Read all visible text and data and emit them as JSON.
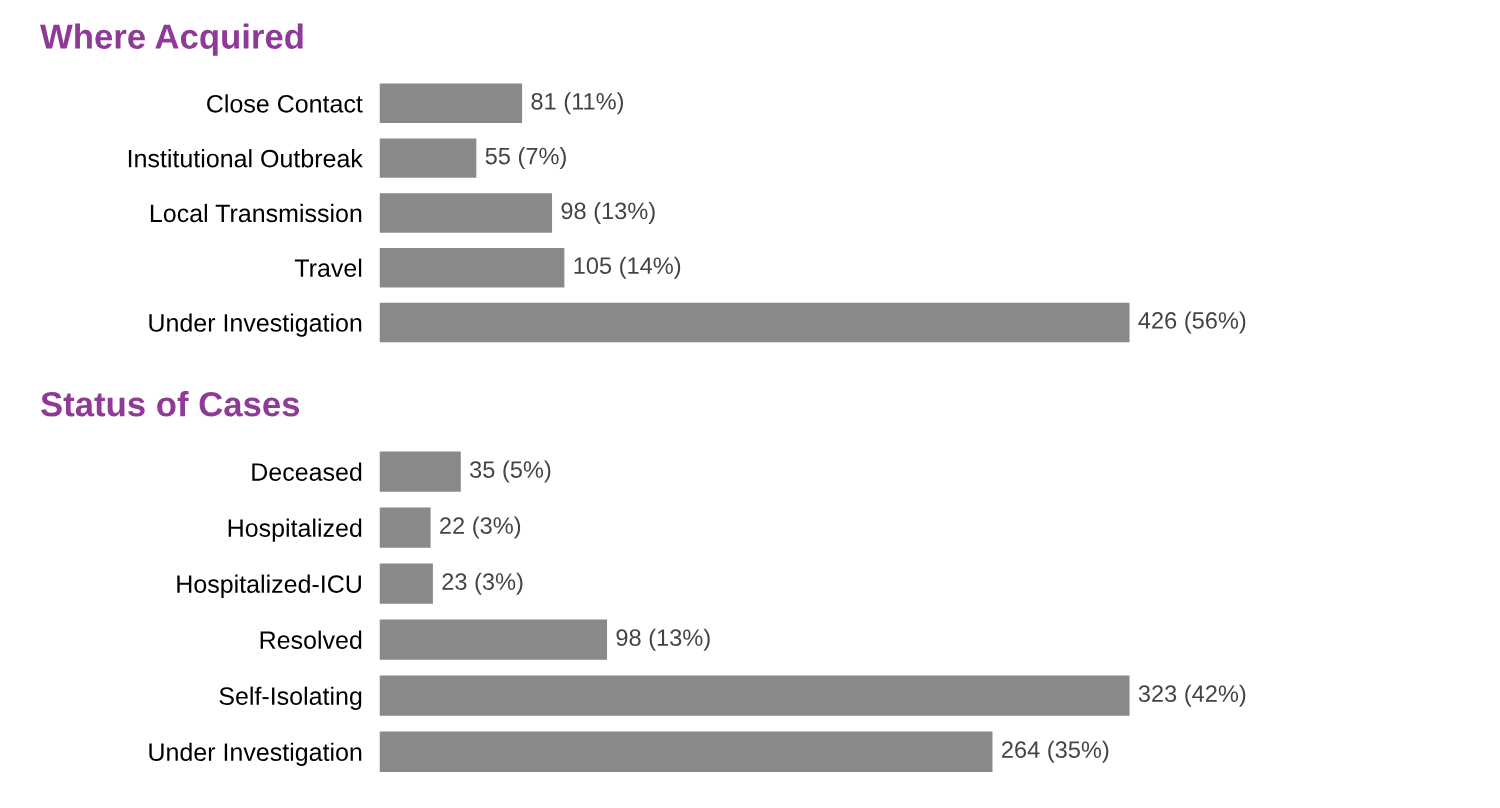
{
  "chart_data": [
    {
      "type": "bar",
      "orientation": "horizontal",
      "title": "Where Acquired",
      "categories": [
        "Close Contact",
        "Institutional Outbreak",
        "Local Transmission",
        "Travel",
        "Under Investigation"
      ],
      "values": [
        81,
        55,
        98,
        105,
        426
      ],
      "value_labels": [
        "81 (11%)",
        "55 (7%)",
        "98 (13%)",
        "105 (14%)",
        "426 (56%)"
      ],
      "color": "#898989"
    },
    {
      "type": "bar",
      "orientation": "horizontal",
      "title": "Status of Cases",
      "categories": [
        "Deceased",
        "Hospitalized",
        "Hospitalized-ICU",
        "Resolved",
        "Self-Isolating",
        "Under Investigation"
      ],
      "values": [
        35,
        22,
        23,
        98,
        323,
        264
      ],
      "value_labels": [
        "35 (5%)",
        "22 (3%)",
        "23 (3%)",
        "98 (13%)",
        "323 (42%)",
        "264 (35%)"
      ],
      "color": "#898989"
    }
  ]
}
